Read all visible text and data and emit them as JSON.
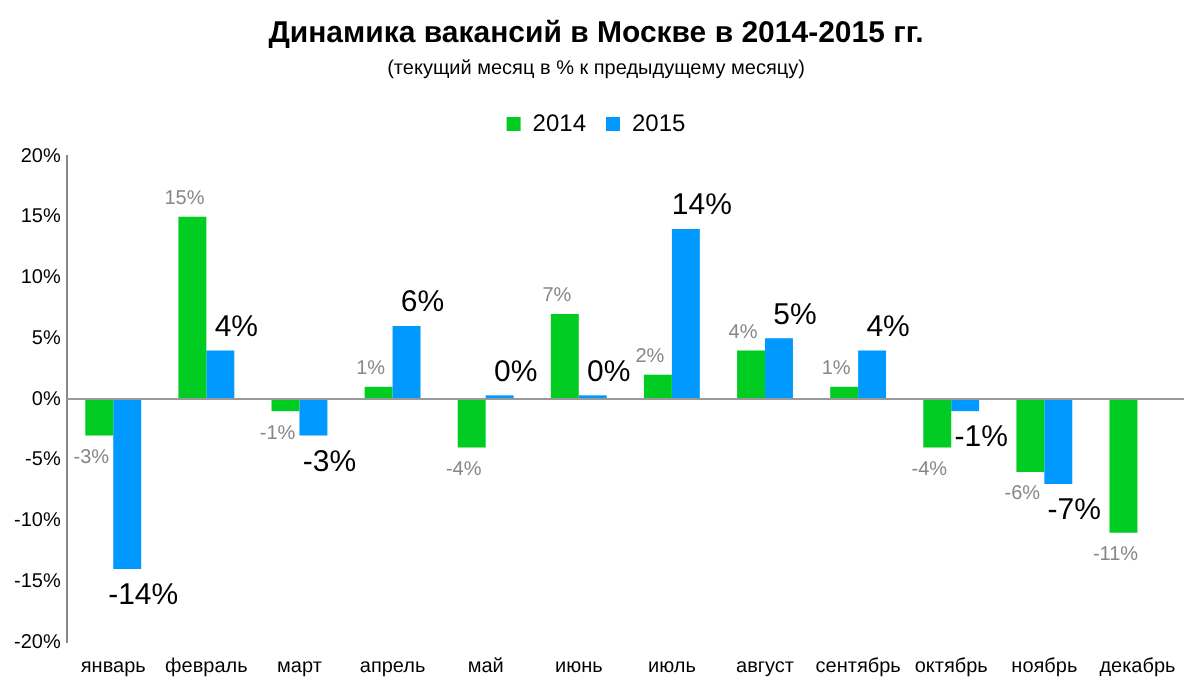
{
  "chart_data": {
    "type": "bar",
    "title": "Динамика вакансий в Москве в 2014-2015 гг.",
    "subtitle": "(текущий месяц в % к предыдущему месяцу)",
    "categories": [
      "январь",
      "февраль",
      "март",
      "апрель",
      "май",
      "июнь",
      "июль",
      "август",
      "сентябрь",
      "октябрь",
      "ноябрь",
      "декабрь"
    ],
    "series": [
      {
        "name": "2014",
        "color": "#00cc22",
        "values": [
          -3,
          15,
          -1,
          1,
          -4,
          7,
          2,
          4,
          1,
          -4,
          -6,
          -11
        ],
        "value_labels": [
          "-3%",
          "15%",
          "-1%",
          "1%",
          "-4%",
          "7%",
          "2%",
          "4%",
          "1%",
          "-4%",
          "-6%",
          "-11%"
        ]
      },
      {
        "name": "2015",
        "color": "#0099ff",
        "values": [
          -14,
          4,
          -3,
          6,
          0.3,
          0.3,
          14,
          5,
          4,
          -1,
          -7,
          null
        ],
        "value_labels": [
          "-14%",
          "4%",
          "-3%",
          "6%",
          "0%",
          "0%",
          "14%",
          "5%",
          "4%",
          "-1%",
          "-7%",
          null
        ]
      }
    ],
    "ylim": [
      -20,
      20
    ],
    "yticks": [
      {
        "value": -20,
        "label": "-20%"
      },
      {
        "value": -15,
        "label": "-15%"
      },
      {
        "value": -10,
        "label": "-10%"
      },
      {
        "value": -5,
        "label": "-5%"
      },
      {
        "value": 0,
        "label": "0%"
      },
      {
        "value": 5,
        "label": "5%"
      },
      {
        "value": 10,
        "label": "10%"
      },
      {
        "value": 15,
        "label": "15%"
      },
      {
        "value": 20,
        "label": "20%"
      }
    ],
    "grid": false,
    "legend": "top",
    "ref_lines": [
      {
        "axis": "y",
        "value": 0,
        "color": "#999999"
      }
    ]
  }
}
